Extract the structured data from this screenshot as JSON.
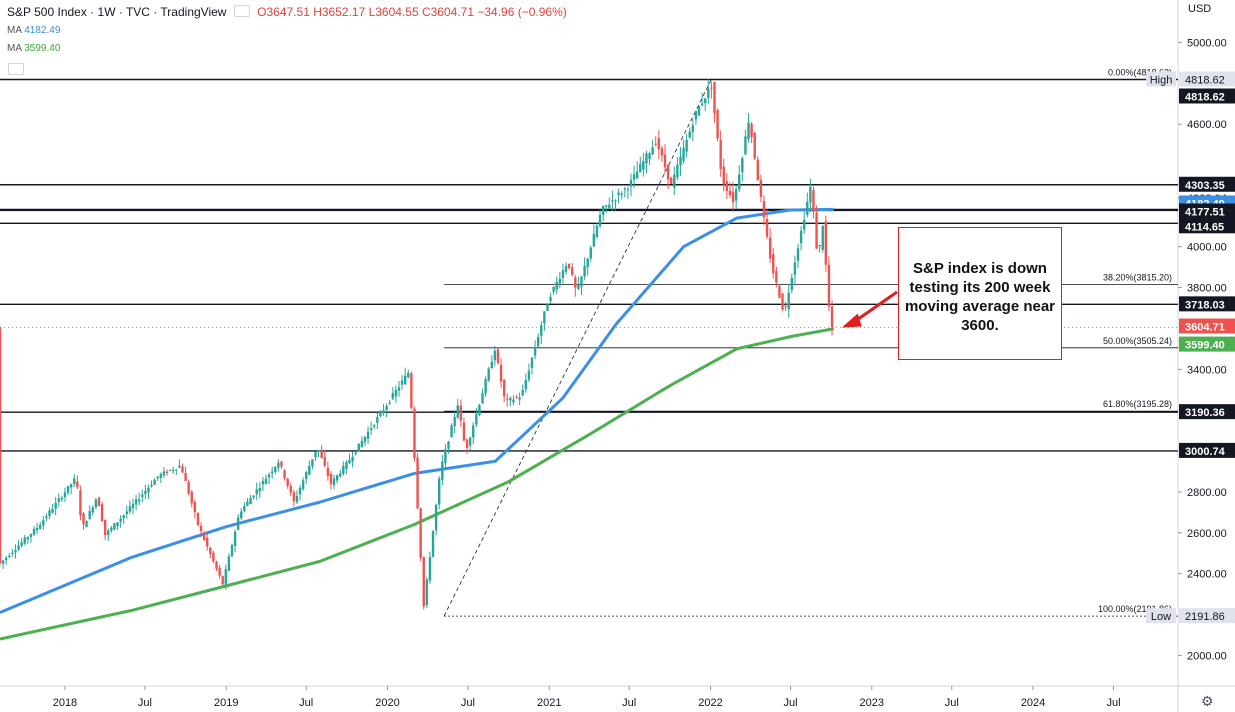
{
  "header": {
    "symbol": "S&P 500 Index",
    "interval": "1W",
    "source": "TVC",
    "platform": "TradingView",
    "ohlc": "O3647.51 H3652.17 L3604.55 C3604.71 −34.96 (−0.96%)",
    "ma1_label": "MA",
    "ma1_value": "4182.49",
    "ma2_label": "MA",
    "ma2_value": "3599.40"
  },
  "currency": "USD",
  "annotation": "S&P index is down testing its 200 week moving average near 3600.",
  "colors": {
    "up": "#26a69a",
    "down": "#ef5350",
    "ma_short": "#3b8fe6",
    "ma_long": "#4caf50",
    "annotation": "#e01e1e"
  },
  "chart_data": {
    "type": "line",
    "title": "S&P 500 Index · 1W · TVC",
    "ylim": [
      1850,
      5100
    ],
    "xlim": [
      "2017-08-07",
      "2024-11-24"
    ],
    "y_ticks": [
      "5000.00",
      "4600.00",
      "4238.04",
      "4000.00",
      "3800.00",
      "3400.00",
      "2800.00",
      "2600.00",
      "2400.00",
      "2000.00"
    ],
    "x_ticks": [
      {
        "label": "2018",
        "date": "2018-01-01"
      },
      {
        "label": "Jul",
        "date": "2018-07-01"
      },
      {
        "label": "2019",
        "date": "2019-01-01"
      },
      {
        "label": "Jul",
        "date": "2019-07-01"
      },
      {
        "label": "2020",
        "date": "2020-01-01"
      },
      {
        "label": "Jul",
        "date": "2020-07-01"
      },
      {
        "label": "2021",
        "date": "2021-01-01"
      },
      {
        "label": "Jul",
        "date": "2021-07-01"
      },
      {
        "label": "2022",
        "date": "2022-01-01"
      },
      {
        "label": "Jul",
        "date": "2022-07-01"
      },
      {
        "label": "2023",
        "date": "2023-01-01"
      },
      {
        "label": "Jul",
        "date": "2023-07-01"
      },
      {
        "label": "2024",
        "date": "2024-01-01"
      },
      {
        "label": "Jul",
        "date": "2024-07-01"
      }
    ],
    "price_series": {
      "x": [
        "2017-08-07",
        "2017-11-01",
        "2018-01-26",
        "2018-02-09",
        "2018-03-15",
        "2018-04-02",
        "2018-06-01",
        "2018-08-01",
        "2018-09-20",
        "2018-10-29",
        "2018-12-24",
        "2019-01-31",
        "2019-04-30",
        "2019-06-03",
        "2019-07-26",
        "2019-08-26",
        "2019-10-01",
        "2019-12-31",
        "2020-02-19",
        "2020-03-23",
        "2020-04-30",
        "2020-06-08",
        "2020-06-26",
        "2020-08-31",
        "2020-09-23",
        "2020-10-30",
        "2020-12-31",
        "2021-02-12",
        "2021-03-04",
        "2021-04-30",
        "2021-06-30",
        "2021-08-31",
        "2021-10-04",
        "2021-11-30",
        "2022-01-03",
        "2022-01-27",
        "2022-02-23",
        "2022-03-29",
        "2022-05-02",
        "2022-05-20",
        "2022-06-17",
        "2022-07-01",
        "2022-08-16",
        "2022-09-01",
        "2022-09-12",
        "2022-09-30",
        "2022-10-07"
      ],
      "y": [
        2450,
        2630,
        2870,
        2620,
        2780,
        2590,
        2730,
        2880,
        2930,
        2640,
        2350,
        2700,
        2950,
        2750,
        3020,
        2840,
        2940,
        3230,
        3390,
        2240,
        2910,
        3230,
        3000,
        3500,
        3240,
        3270,
        3750,
        3930,
        3770,
        4180,
        4300,
        4520,
        4300,
        4660,
        4790,
        4330,
        4220,
        4630,
        4130,
        3900,
        3670,
        3830,
        4300,
        3930,
        4110,
        3590,
        3605
      ]
    },
    "ma_200": {
      "name": "MA",
      "last_value": 3599.4,
      "x": [
        "2017-08-07",
        "2018-06-01",
        "2019-01-01",
        "2019-08-01",
        "2020-03-01",
        "2020-10-01",
        "2021-04-01",
        "2021-10-01",
        "2022-03-01",
        "2022-07-01",
        "2022-10-07"
      ],
      "y": [
        2080,
        2220,
        2340,
        2460,
        2640,
        2850,
        3080,
        3320,
        3500,
        3560,
        3599
      ]
    },
    "ma_50": {
      "name": "MA",
      "last_value": 4182.49,
      "x": [
        "2017-08-07",
        "2018-06-01",
        "2019-01-01",
        "2019-08-01",
        "2020-03-01",
        "2020-09-01",
        "2021-02-01",
        "2021-06-01",
        "2021-11-01",
        "2022-03-01",
        "2022-07-01",
        "2022-10-07"
      ],
      "y": [
        2210,
        2480,
        2630,
        2750,
        2890,
        2950,
        3260,
        3620,
        4000,
        4140,
        4180,
        4183
      ]
    },
    "trendline": {
      "x": [
        "2020-05-08",
        "2022-01-03"
      ],
      "y": [
        2192,
        4819
      ]
    },
    "fib_levels": [
      {
        "label": "0.00%(4818.62)",
        "value": 4818.62
      },
      {
        "label": "38.20%(3815.20)",
        "value": 3815.2
      },
      {
        "label": "50.00%(3505.24)",
        "value": 3505.24
      },
      {
        "label": "61.80%(3195.28)",
        "value": 3195.28
      },
      {
        "label": "100.00%(2191.86)",
        "value": 2191.86
      }
    ],
    "horizontal_levels": [
      {
        "label": "4303.35",
        "value": 4303.35
      },
      {
        "label": "4182.49",
        "value": 4182.49
      },
      {
        "label": "4177.51",
        "value": 4177.51
      },
      {
        "label": "4114.65",
        "value": 4114.65
      },
      {
        "label": "3718.03",
        "value": 3718.03
      },
      {
        "label": "3190.36",
        "value": 3190.36
      },
      {
        "label": "3000.74",
        "value": 3000.74
      },
      {
        "label": "4818.62",
        "value": 4818.62
      }
    ],
    "price_badges": [
      {
        "label": "4818.62",
        "value": 4818.62,
        "tag": "High"
      },
      {
        "label": "2191.86",
        "value": 2191.86,
        "tag": "Low"
      },
      {
        "label": "4818.62",
        "value": 4818.62,
        "kind": "level"
      },
      {
        "label": "4303.35",
        "value": 4303.35,
        "kind": "level"
      },
      {
        "label": "4182.49",
        "value": 4182.49,
        "kind": "ma_short"
      },
      {
        "label": "4177.51",
        "value": 4177.51,
        "kind": "level"
      },
      {
        "label": "4114.65",
        "value": 4114.65,
        "kind": "level"
      },
      {
        "label": "3718.03",
        "value": 3718.03,
        "kind": "level"
      },
      {
        "label": "3604.71",
        "value": 3604.71,
        "kind": "last"
      },
      {
        "label": "3599.40",
        "value": 3599.4,
        "kind": "ma_long"
      },
      {
        "label": "3190.36",
        "value": 3190.36,
        "kind": "level"
      },
      {
        "label": "3000.74",
        "value": 3000.74,
        "kind": "level"
      }
    ],
    "last_price": 3604.71
  }
}
